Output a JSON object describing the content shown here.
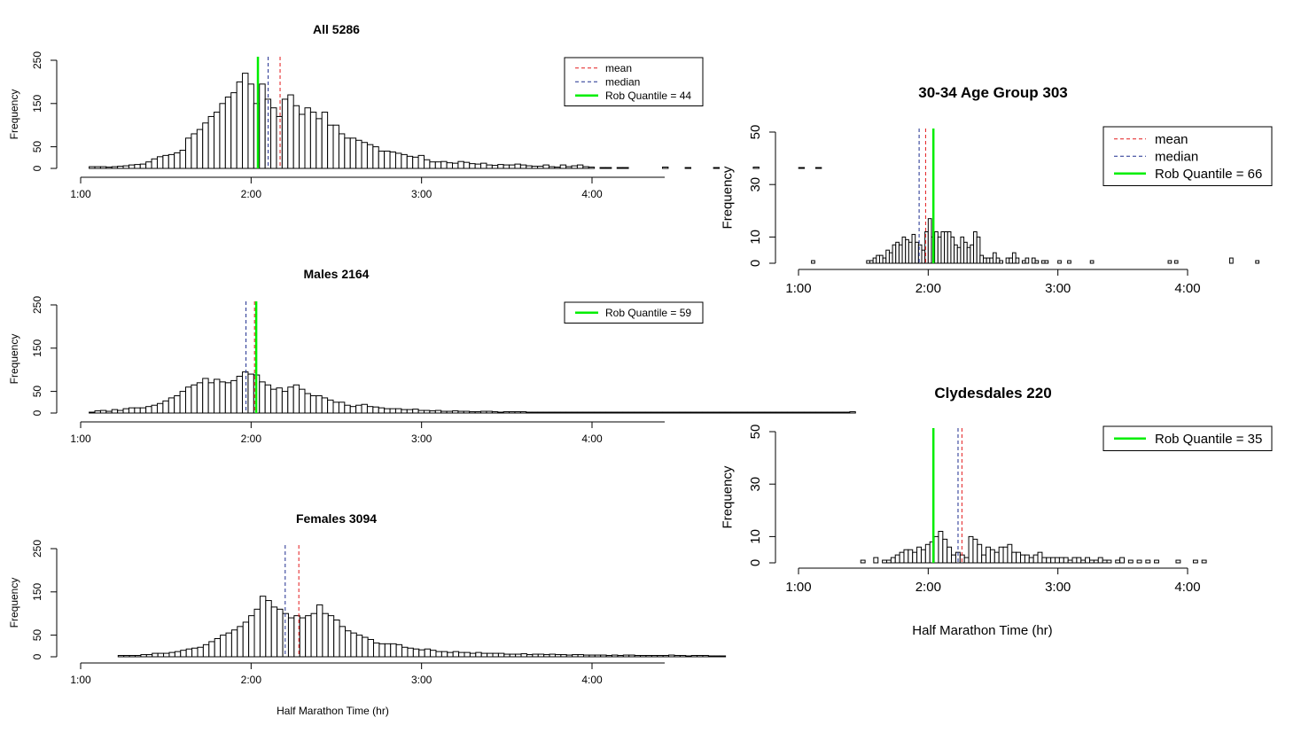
{
  "colors": {
    "mean": "#e31a1c",
    "median": "#1f2e8f",
    "quantile": "#00ee00",
    "bar_fill": "#ffffff",
    "bar_stroke": "#000000"
  },
  "legend_labels": {
    "mean": "mean",
    "median": "median"
  },
  "chart_data": [
    {
      "type": "bar",
      "title": "All 5286",
      "xlabel": "",
      "ylabel": "Frequency",
      "xlim": [
        1.0,
        4.42
      ],
      "ylim": [
        0,
        250
      ],
      "xticks": [
        "1:00",
        "2:00",
        "3:00",
        "4:00"
      ],
      "yticks": [
        "0",
        "50",
        "150",
        "250"
      ],
      "mean": 2.17,
      "median": 2.1,
      "quantile": 2.04,
      "legend": [
        "mean",
        "median",
        "Rob Quantile = 44"
      ],
      "legend_position": "top-right",
      "bin_start": 1.05,
      "bin_width": 0.0333,
      "values": [
        4,
        4,
        4,
        3,
        4,
        5,
        6,
        8,
        9,
        10,
        15,
        22,
        27,
        30,
        32,
        36,
        42,
        70,
        80,
        90,
        105,
        120,
        130,
        150,
        165,
        175,
        200,
        220,
        195,
        150,
        195,
        160,
        140,
        120,
        160,
        170,
        145,
        125,
        140,
        130,
        115,
        130,
        100,
        100,
        80,
        70,
        70,
        65,
        60,
        55,
        50,
        40,
        40,
        38,
        35,
        32,
        28,
        26,
        30,
        20,
        15,
        15,
        16,
        13,
        12,
        16,
        14,
        11,
        10,
        12,
        8,
        7,
        9,
        8,
        8,
        10,
        8,
        6,
        5,
        5,
        8,
        4,
        3,
        8,
        4,
        6,
        8,
        4,
        3,
        0,
        2,
        2,
        0,
        2,
        2,
        0,
        0,
        0,
        0,
        0,
        0,
        3,
        0,
        0,
        0,
        2,
        0,
        0,
        0,
        0,
        2,
        0,
        0,
        0,
        0,
        0,
        0,
        3,
        0,
        0,
        0,
        0,
        0,
        0,
        0,
        2,
        0,
        0,
        2,
        0,
        0,
        0,
        0
      ],
      "axis_end": 4.33
    },
    {
      "type": "bar",
      "title": "Males 2164",
      "xlabel": "",
      "ylabel": "Frequency",
      "xlim": [
        1.0,
        4.42
      ],
      "ylim": [
        0,
        250
      ],
      "xticks": [
        "1:00",
        "2:00",
        "3:00",
        "4:00"
      ],
      "yticks": [
        "0",
        "50",
        "150",
        "250"
      ],
      "mean": 2.02,
      "median": 1.97,
      "quantile": 2.03,
      "legend": [
        "Rob Quantile = 59"
      ],
      "legend_position": "top-right",
      "bin_start": 1.05,
      "bin_width": 0.0333,
      "values": [
        2,
        5,
        6,
        4,
        8,
        6,
        10,
        12,
        12,
        12,
        15,
        18,
        22,
        28,
        35,
        40,
        50,
        60,
        65,
        70,
        80,
        70,
        78,
        72,
        70,
        75,
        85,
        95,
        90,
        88,
        72,
        65,
        55,
        58,
        50,
        60,
        65,
        55,
        45,
        40,
        40,
        35,
        30,
        25,
        25,
        18,
        15,
        18,
        20,
        15,
        14,
        12,
        10,
        10,
        10,
        8,
        8,
        9,
        6,
        6,
        5,
        6,
        4,
        4,
        5,
        4,
        4,
        3,
        3,
        4,
        4,
        3,
        2,
        3,
        3,
        3,
        3,
        2,
        2,
        2,
        2,
        2,
        2,
        2,
        2,
        2,
        2,
        2,
        2,
        2,
        2,
        2,
        2,
        2,
        2,
        2,
        2,
        2,
        2,
        2,
        2,
        2,
        2,
        2,
        2,
        2,
        2,
        2,
        2,
        2,
        2,
        2,
        2,
        2,
        2,
        2,
        2,
        2,
        2,
        2,
        2,
        2,
        2,
        2,
        2,
        2,
        2,
        2,
        2,
        2,
        2,
        2,
        2,
        2,
        3
      ],
      "axis_end": 4.33
    },
    {
      "type": "bar",
      "title": "Females 3094",
      "xlabel": "Half Marathon Time (hr)",
      "ylabel": "Frequency",
      "xlim": [
        1.0,
        4.42
      ],
      "ylim": [
        0,
        250
      ],
      "xticks": [
        "1:00",
        "2:00",
        "3:00",
        "4:00"
      ],
      "yticks": [
        "0",
        "50",
        "150",
        "250"
      ],
      "mean": 2.28,
      "median": 2.2,
      "quantile": null,
      "legend": [],
      "legend_position": "",
      "bin_start": 1.22,
      "bin_width": 0.0333,
      "values": [
        3,
        3,
        3,
        3,
        5,
        5,
        8,
        8,
        8,
        10,
        12,
        15,
        18,
        20,
        22,
        28,
        35,
        42,
        50,
        55,
        62,
        70,
        80,
        95,
        110,
        140,
        130,
        115,
        110,
        100,
        90,
        95,
        90,
        95,
        100,
        120,
        100,
        95,
        85,
        70,
        60,
        55,
        50,
        45,
        40,
        32,
        30,
        30,
        30,
        28,
        22,
        20,
        18,
        16,
        18,
        15,
        12,
        12,
        10,
        12,
        10,
        10,
        8,
        10,
        8,
        8,
        8,
        8,
        6,
        6,
        6,
        7,
        5,
        6,
        6,
        5,
        6,
        5,
        5,
        4,
        5,
        5,
        4,
        4,
        4,
        4,
        3,
        4,
        3,
        4,
        4,
        3,
        3,
        3,
        3,
        3,
        3,
        4,
        3,
        3,
        2,
        3,
        3,
        3,
        2,
        2,
        2
      ],
      "axis_end": 4.33
    },
    {
      "type": "bar",
      "title": "30-34 Age Group 303",
      "xlabel": "",
      "ylabel": "Frequency",
      "xlim": [
        1.0,
        4.0
      ],
      "ylim": [
        0,
        50
      ],
      "xticks": [
        "1:00",
        "2:00",
        "3:00",
        "4:00"
      ],
      "yticks": [
        "0",
        "10",
        "30",
        "50"
      ],
      "mean": 1.98,
      "median": 1.93,
      "quantile": 2.04,
      "legend": [
        "mean",
        "median",
        "Rob Quantile = 66"
      ],
      "legend_position": "top-right",
      "bin_start": 1.1,
      "bin_width": 0.025,
      "values": [
        1,
        0,
        0,
        0,
        0,
        0,
        0,
        0,
        0,
        0,
        0,
        0,
        0,
        0,
        0,
        0,
        0,
        1,
        1,
        2,
        3,
        3,
        2,
        5,
        4,
        7,
        8,
        7,
        10,
        9,
        8,
        11,
        8,
        7,
        5,
        12,
        17,
        10,
        12,
        10,
        12,
        12,
        12,
        10,
        7,
        6,
        10,
        8,
        6,
        7,
        12,
        10,
        3,
        2,
        2,
        2,
        4,
        2,
        1,
        0,
        2,
        2,
        4,
        2,
        0,
        1,
        2,
        0,
        2,
        1,
        0,
        1,
        1,
        0,
        0,
        0,
        1,
        0,
        0,
        1,
        0,
        0,
        0,
        0,
        0,
        0,
        1,
        0,
        0,
        0,
        0,
        0,
        0,
        0,
        0,
        0,
        0,
        0,
        0,
        0,
        0,
        0,
        0,
        0,
        0,
        0,
        0,
        0,
        0,
        0,
        1,
        0,
        1,
        0,
        0,
        0,
        0,
        0,
        0,
        0,
        0,
        0,
        0,
        0,
        0,
        0,
        0,
        0,
        0,
        2,
        0,
        0,
        0,
        0,
        0,
        0,
        0,
        1
      ],
      "axis_end": 4.0
    },
    {
      "type": "bar",
      "title": "Clydesdales 220",
      "xlabel": "Half Marathon Time (hr)",
      "ylabel": "Frequency",
      "xlim": [
        1.0,
        4.0
      ],
      "ylim": [
        0,
        50
      ],
      "xticks": [
        "1:00",
        "2:00",
        "3:00",
        "4:00"
      ],
      "yticks": [
        "0",
        "10",
        "30",
        "50"
      ],
      "mean": 2.26,
      "median": 2.23,
      "quantile": 2.04,
      "legend": [
        "Rob Quantile = 35"
      ],
      "legend_position": "top-right",
      "bin_start": 1.48,
      "bin_width": 0.0333,
      "values": [
        1,
        0,
        0,
        2,
        0,
        1,
        1,
        2,
        3,
        4,
        5,
        5,
        4,
        6,
        5,
        7,
        8,
        10,
        12,
        9,
        6,
        3,
        4,
        3,
        2,
        10,
        9,
        7,
        3,
        6,
        5,
        4,
        6,
        6,
        7,
        4,
        4,
        3,
        3,
        2,
        3,
        4,
        2,
        2,
        2,
        2,
        2,
        2,
        1,
        2,
        2,
        1,
        2,
        1,
        1,
        2,
        1,
        1,
        0,
        1,
        2,
        0,
        1,
        0,
        1,
        0,
        1,
        0,
        1,
        0,
        0,
        0,
        0,
        1,
        0,
        0,
        0,
        1,
        0,
        1
      ],
      "axis_end": 4.0
    }
  ]
}
